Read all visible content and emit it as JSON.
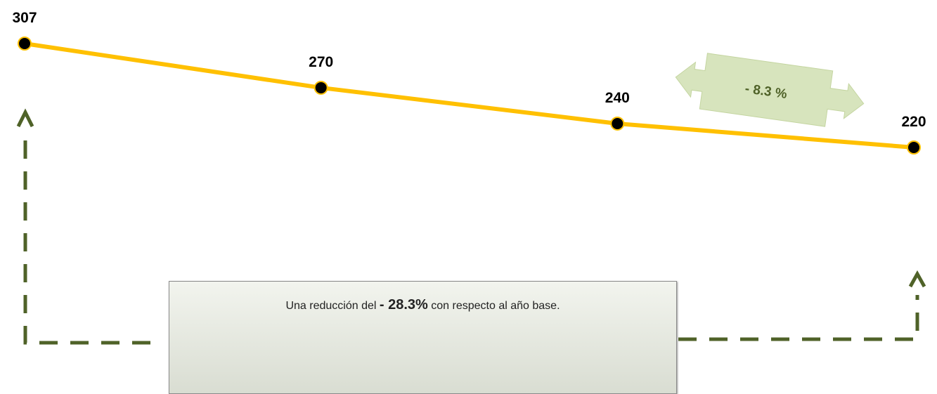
{
  "chart_data": {
    "type": "line",
    "values": [
      307,
      270,
      240,
      220
    ],
    "color": "#ffc000",
    "arrow_annotation": "- 8.3 %",
    "summary": {
      "before": "Una reducción del",
      "highlight": "- 28.3%",
      "after": "con respecto al año base."
    }
  }
}
